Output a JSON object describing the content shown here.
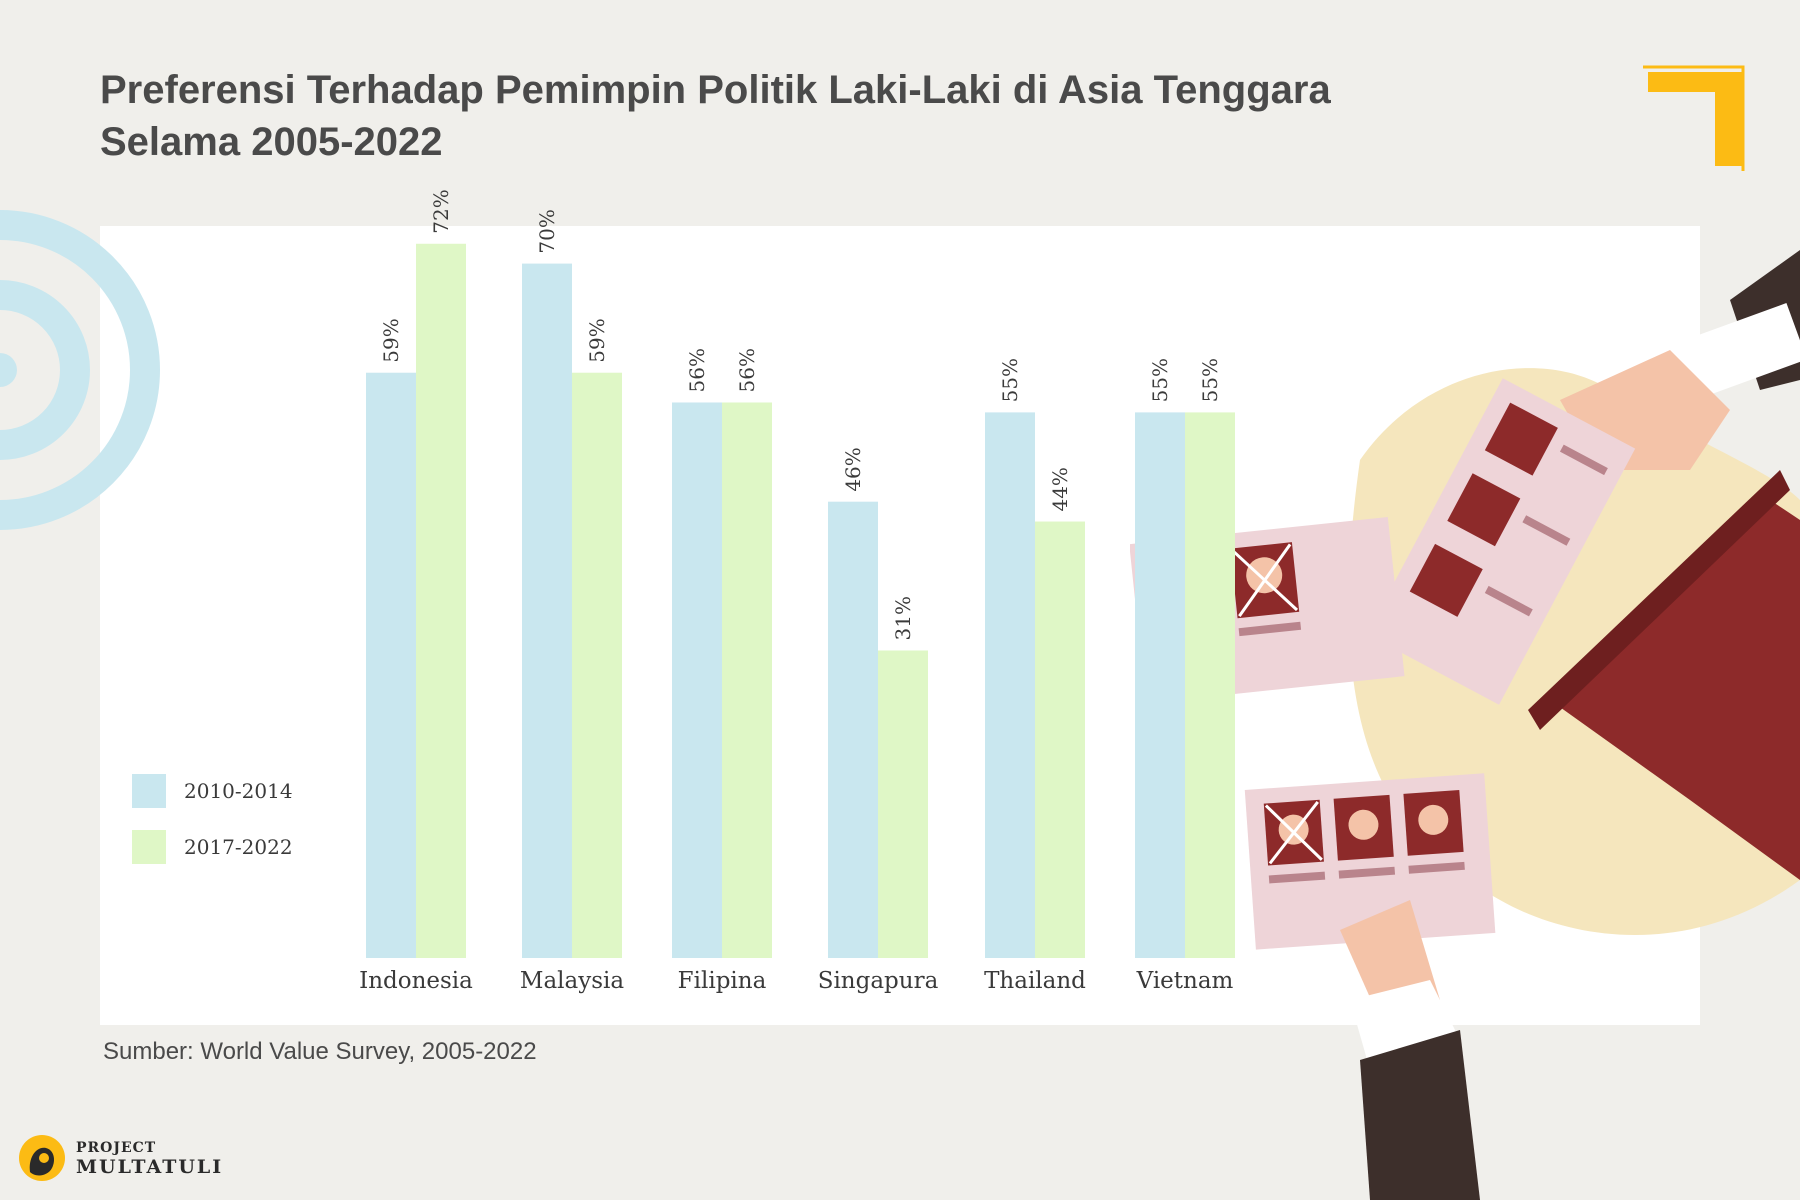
{
  "header": {
    "title_line1": "Preferensi Terhadap Pemimpin Politik Laki-Laki di Asia Tenggara",
    "title_line2": "Selama 2005-2022"
  },
  "source": "Sumber: World Value Survey, 2005-2022",
  "brand": {
    "line1": "PROJECT",
    "line2": "MULTATULI"
  },
  "colors": {
    "series_2010_2014": "#c9e7ef",
    "series_2017_2022": "#dff7c6",
    "accent_yellow": "#fcbb14",
    "ring_blue": "#c9e7ef",
    "folder_red": "#8d2a2a",
    "blob_cream": "#f5e6bd"
  },
  "chart_data": {
    "type": "bar",
    "title": "Preferensi Terhadap Pemimpin Politik Laki-Laki di Asia Tenggara Selama 2005-2022",
    "categories": [
      "Indonesia",
      "Malaysia",
      "Filipina",
      "Singapura",
      "Thailand",
      "Vietnam"
    ],
    "series": [
      {
        "name": "2010-2014",
        "values": [
          59,
          70,
          56,
          46,
          55,
          55
        ],
        "labels": [
          "59%",
          "70%",
          "56%",
          "46%",
          "55%",
          "55%"
        ]
      },
      {
        "name": "2017-2022",
        "values": [
          72,
          59,
          56,
          31,
          44,
          55
        ],
        "labels": [
          "72%",
          "59%",
          "56%",
          "31%",
          "44%",
          "55%"
        ]
      }
    ],
    "ylim": [
      0,
      75
    ],
    "grid": false,
    "legend_position": "left",
    "xlabel": "",
    "ylabel": ""
  }
}
